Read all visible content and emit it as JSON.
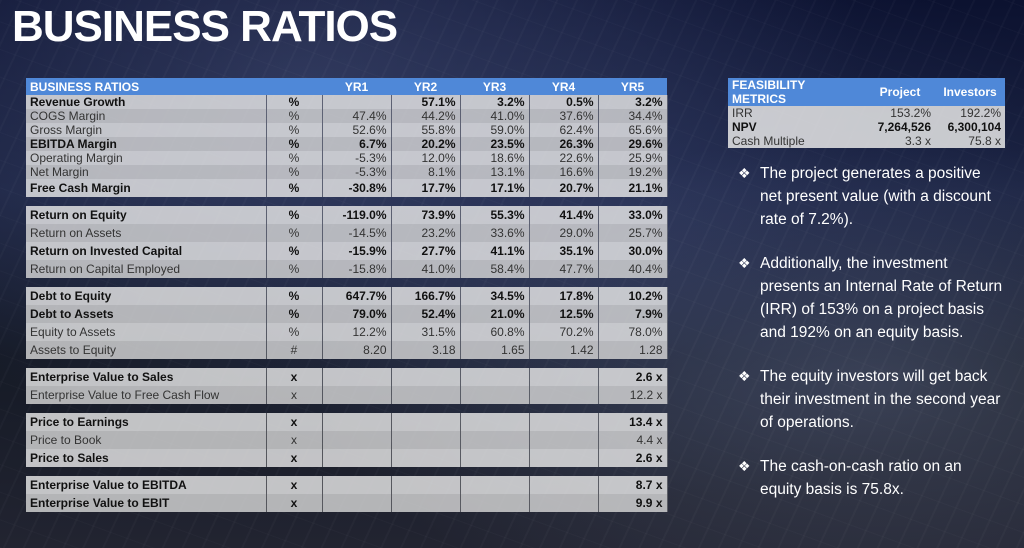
{
  "title": "BUSINESS RATIOS",
  "ratios": {
    "headers": [
      "BUSINESS RATIOS",
      "",
      "YR1",
      "YR2",
      "YR3",
      "YR4",
      "YR5"
    ],
    "groups": [
      [
        {
          "label": "Revenue Growth",
          "unit": "%",
          "vals": [
            "",
            "57.1%",
            "3.2%",
            "0.5%",
            "3.2%"
          ],
          "bold": true
        },
        {
          "label": "COGS Margin",
          "unit": "%",
          "vals": [
            "47.4%",
            "44.2%",
            "41.0%",
            "37.6%",
            "34.4%"
          ]
        },
        {
          "label": "Gross Margin",
          "unit": "%",
          "vals": [
            "52.6%",
            "55.8%",
            "59.0%",
            "62.4%",
            "65.6%"
          ]
        },
        {
          "label": "EBITDA Margin",
          "unit": "%",
          "vals": [
            "6.7%",
            "20.2%",
            "23.5%",
            "26.3%",
            "29.6%"
          ],
          "bold": true
        },
        {
          "label": "Operating Margin",
          "unit": "%",
          "vals": [
            "-5.3%",
            "12.0%",
            "18.6%",
            "22.6%",
            "25.9%"
          ]
        },
        {
          "label": "Net Margin",
          "unit": "%",
          "vals": [
            "-5.3%",
            "8.1%",
            "13.1%",
            "16.6%",
            "19.2%"
          ]
        },
        {
          "label": "Free Cash Margin",
          "unit": "%",
          "vals": [
            "-30.8%",
            "17.7%",
            "17.1%",
            "20.7%",
            "21.1%"
          ],
          "bold": true,
          "tall": true
        }
      ],
      [
        {
          "label": "Return on Equity",
          "unit": "%",
          "vals": [
            "-119.0%",
            "73.9%",
            "55.3%",
            "41.4%",
            "33.0%"
          ],
          "bold": true,
          "tall": true
        },
        {
          "label": "Return on Assets",
          "unit": "%",
          "vals": [
            "-14.5%",
            "23.2%",
            "33.6%",
            "29.0%",
            "25.7%"
          ],
          "tall": true
        },
        {
          "label": "Return on Invested Capital",
          "unit": "%",
          "vals": [
            "-15.9%",
            "27.7%",
            "41.1%",
            "35.1%",
            "30.0%"
          ],
          "bold": true,
          "tall": true
        },
        {
          "label": "Return on Capital Employed",
          "unit": "%",
          "vals": [
            "-15.8%",
            "41.0%",
            "58.4%",
            "47.7%",
            "40.4%"
          ],
          "tall": true
        }
      ],
      [
        {
          "label": "Debt to Equity",
          "unit": "%",
          "vals": [
            "647.7%",
            "166.7%",
            "34.5%",
            "17.8%",
            "10.2%"
          ],
          "bold": true,
          "tall": true
        },
        {
          "label": "Debt to Assets",
          "unit": "%",
          "vals": [
            "79.0%",
            "52.4%",
            "21.0%",
            "12.5%",
            "7.9%"
          ],
          "bold": true,
          "tall": true
        },
        {
          "label": "Equity to Assets",
          "unit": "%",
          "vals": [
            "12.2%",
            "31.5%",
            "60.8%",
            "70.2%",
            "78.0%"
          ],
          "tall": true
        },
        {
          "label": "Assets to Equity",
          "unit": "#",
          "vals": [
            "8.20",
            "3.18",
            "1.65",
            "1.42",
            "1.28"
          ],
          "tall": true
        }
      ],
      [
        {
          "label": "Enterprise Value to Sales",
          "unit": "x",
          "vals": [
            "",
            "",
            "",
            "",
            "2.6 x"
          ],
          "bold": true,
          "tall": true
        },
        {
          "label": "Enterprise Value to Free Cash Flow",
          "unit": "x",
          "vals": [
            "",
            "",
            "",
            "",
            "12.2 x"
          ],
          "tall": true
        }
      ],
      [
        {
          "label": "Price to Earnings",
          "unit": "x",
          "vals": [
            "",
            "",
            "",
            "",
            "13.4 x"
          ],
          "bold": true,
          "tall": true
        },
        {
          "label": "Price to Book",
          "unit": "x",
          "vals": [
            "",
            "",
            "",
            "",
            "4.4 x"
          ],
          "tall": true
        },
        {
          "label": "Price to Sales",
          "unit": "x",
          "vals": [
            "",
            "",
            "",
            "",
            "2.6 x"
          ],
          "bold": true,
          "tall": true
        }
      ],
      [
        {
          "label": "Enterprise Value to EBITDA",
          "unit": "x",
          "vals": [
            "",
            "",
            "",
            "",
            "8.7 x"
          ],
          "bold": true,
          "tall": true
        },
        {
          "label": "Enterprise Value to EBIT",
          "unit": "x",
          "vals": [
            "",
            "",
            "",
            "",
            "9.9 x"
          ],
          "bold": true,
          "tall": true
        }
      ]
    ]
  },
  "feasibility": {
    "headers": [
      "FEASIBILITY METRICS",
      "Project",
      "Investors"
    ],
    "rows": [
      {
        "label": "IRR",
        "project": "153.2%",
        "investors": "192.2%"
      },
      {
        "label": "NPV",
        "project": "7,264,526",
        "investors": "6,300,104",
        "bold": true
      },
      {
        "label": "Cash Multiple",
        "project": "3.3 x",
        "investors": "75.8 x"
      }
    ]
  },
  "bullets": {
    "marker": "❖",
    "items": [
      "The project generates a positive net present value (with a discount rate of 7.2%).",
      "Additionally, the investment presents an Internal Rate of Return (IRR) of 153% on a project basis and 192% on an equity basis.",
      "The equity investors will get back their investment in the second year of operations.",
      "The cash-on-cash ratio on an equity basis is 75.8x."
    ]
  }
}
